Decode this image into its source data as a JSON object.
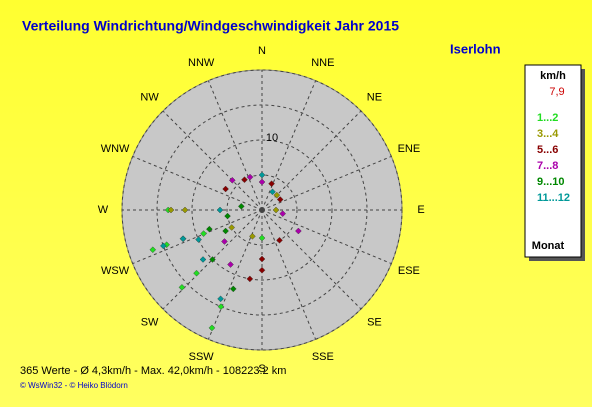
{
  "chart_data": {
    "type": "polar-scatter",
    "title": "Verteilung Windrichtung/Windgeschwindigkeit  Jahr 2015",
    "location": "Iserlohn",
    "directions": [
      "N",
      "NNE",
      "NE",
      "ENE",
      "E",
      "ESE",
      "SE",
      "SSE",
      "S",
      "SSW",
      "SW",
      "WSW",
      "W",
      "WNW",
      "NW",
      "NNW"
    ],
    "rlim": [
      0,
      20
    ],
    "rticks": [
      10
    ],
    "rgrid": [
      5,
      15,
      20
    ],
    "legend_title": "km/h",
    "legend_value": "7,9",
    "legend_footer": "Monat",
    "series": [
      {
        "name": "1...2",
        "color": "#22dd22",
        "direction": [
          250,
          250,
          250,
          248,
          226,
          226,
          203,
          203,
          270,
          180
        ],
        "values": [
          16.6,
          14.5,
          12,
          9,
          15.9,
          13,
          18.3,
          15,
          13.4,
          4
        ]
      },
      {
        "name": "3...4",
        "color": "#999900",
        "direction": [
          270,
          270,
          240,
          200,
          45,
          90
        ],
        "values": [
          13,
          11,
          5,
          4,
          3,
          2
        ]
      },
      {
        "name": "5...6",
        "color": "#880000",
        "direction": [
          180,
          180,
          190,
          300,
          330,
          20,
          60,
          150
        ],
        "values": [
          8.6,
          7,
          10,
          6,
          5,
          4,
          3,
          5
        ]
      },
      {
        "name": "7...8",
        "color": "#aa00aa",
        "direction": [
          315,
          340,
          0,
          100,
          120,
          210,
          230
        ],
        "values": [
          6,
          5,
          4,
          3,
          6,
          9,
          7
        ]
      },
      {
        "name": "9...10",
        "color": "#008800",
        "direction": [
          250,
          240,
          225,
          200,
          260,
          280
        ],
        "values": [
          8,
          6,
          10,
          12,
          5,
          3
        ]
      },
      {
        "name": "11...12",
        "color": "#009999",
        "direction": [
          250,
          250,
          245,
          230,
          205,
          270,
          0,
          30
        ],
        "values": [
          15,
          12,
          10,
          11,
          14,
          6,
          5,
          3
        ]
      }
    ],
    "footer": "365 Werte   -   Ø 4,3km/h   -  Max. 42,0km/h   -   108223.2 km",
    "copyright": "© WsWin32  -  © Heiko Blödorn"
  }
}
